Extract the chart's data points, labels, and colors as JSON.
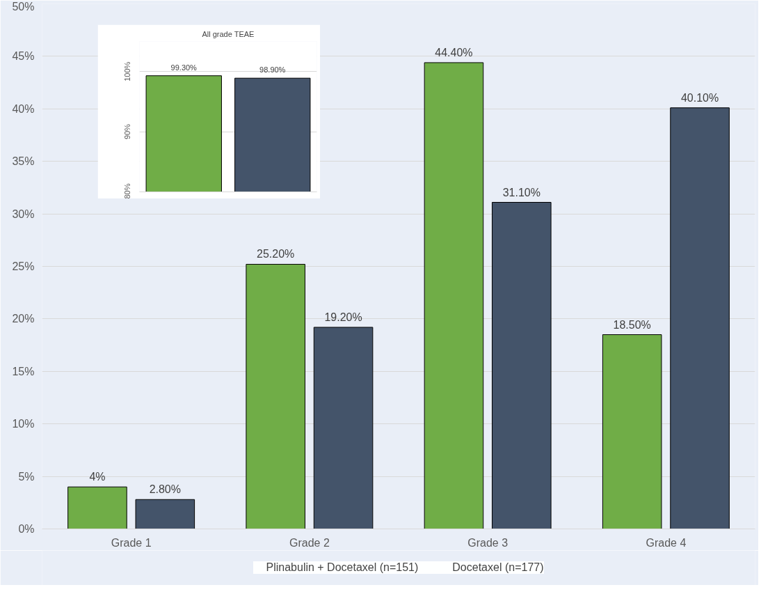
{
  "chart_data": [
    {
      "type": "bar",
      "categories": [
        "Grade 1",
        "Grade 2",
        "Grade 3",
        "Grade 4"
      ],
      "series": [
        {
          "name": "Plinabulin + Docetaxel (n=151)",
          "color": "#70ad47",
          "values": [
            4,
            25.2,
            44.4,
            18.5
          ],
          "value_labels": [
            "4%",
            "25.20%",
            "44.40%",
            "18.50%"
          ]
        },
        {
          "name": "Docetaxel (n=177)",
          "color": "#44546a",
          "values": [
            2.8,
            19.2,
            31.1,
            40.1
          ],
          "value_labels": [
            "2.80%",
            "19.20%",
            "31.10%",
            "40.10%"
          ]
        }
      ],
      "ylim": [
        0,
        50
      ],
      "yticks": [
        {
          "value": 0,
          "label": "0%"
        },
        {
          "value": 5,
          "label": "5%"
        },
        {
          "value": 10,
          "label": "10%"
        },
        {
          "value": 15,
          "label": "15%"
        },
        {
          "value": 20,
          "label": "20%"
        },
        {
          "value": 25,
          "label": "25%"
        },
        {
          "value": 30,
          "label": "30%"
        },
        {
          "value": 35,
          "label": "35%"
        },
        {
          "value": 40,
          "label": "40%"
        },
        {
          "value": 45,
          "label": "45%"
        },
        {
          "value": 50,
          "label": "50%"
        }
      ],
      "grid": "y",
      "legend": "bottom"
    },
    {
      "type": "bar",
      "title": "All grade TEAE",
      "categories": [
        null,
        null
      ],
      "series": [
        {
          "colors": [
            "#70ad47",
            "#44546a"
          ],
          "values": [
            99.3,
            98.9
          ],
          "value_labels": [
            "99.30%",
            "98.90%"
          ]
        }
      ],
      "ylim": [
        80,
        105
      ],
      "yticks": [
        {
          "value": 80,
          "label": "80%"
        },
        {
          "value": 90,
          "label": "90%"
        },
        {
          "value": 100,
          "label": "100%"
        }
      ],
      "grid": "y"
    }
  ]
}
